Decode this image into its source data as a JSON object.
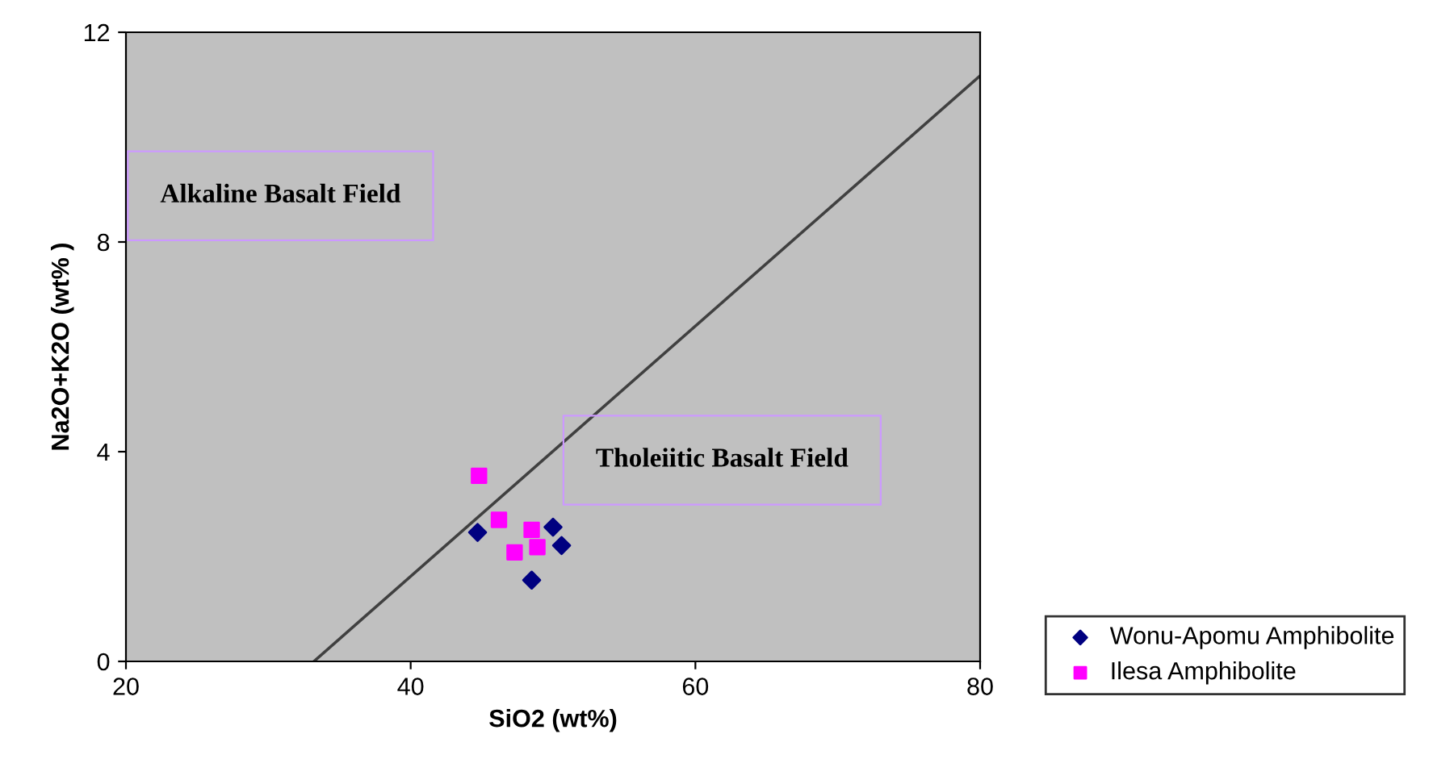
{
  "chart_data": {
    "type": "scatter",
    "xlabel": "SiO2 (wt%)",
    "ylabel": "Na2O+K2O (wt% )",
    "xlim": [
      20,
      80
    ],
    "ylim": [
      0,
      12
    ],
    "xticks": [
      20,
      40,
      60,
      80
    ],
    "yticks": [
      0,
      4,
      8,
      12
    ],
    "grid": false,
    "legend": "right",
    "series": [
      {
        "name": "Wonu-Apomu Amphibolite",
        "color": "#000080",
        "marker": "diamond",
        "x": [
          44.7,
          50.0,
          50.6,
          48.5
        ],
        "values": [
          2.46,
          2.56,
          2.21,
          1.55
        ]
      },
      {
        "name": "Ilesa Amphibolite",
        "color": "#ff00ff",
        "marker": "square",
        "x": [
          44.8,
          46.2,
          48.5,
          47.3,
          48.9
        ],
        "values": [
          3.54,
          2.7,
          2.51,
          2.08,
          2.18
        ]
      },
      {
        "type": "line",
        "color": "#404040",
        "marker": "none",
        "x": [
          33.2,
          80
        ],
        "values": [
          0,
          11.17
        ]
      }
    ],
    "annotations": [
      "Alkaline Basalt Field",
      "Tholeiitic Basalt Field"
    ]
  }
}
